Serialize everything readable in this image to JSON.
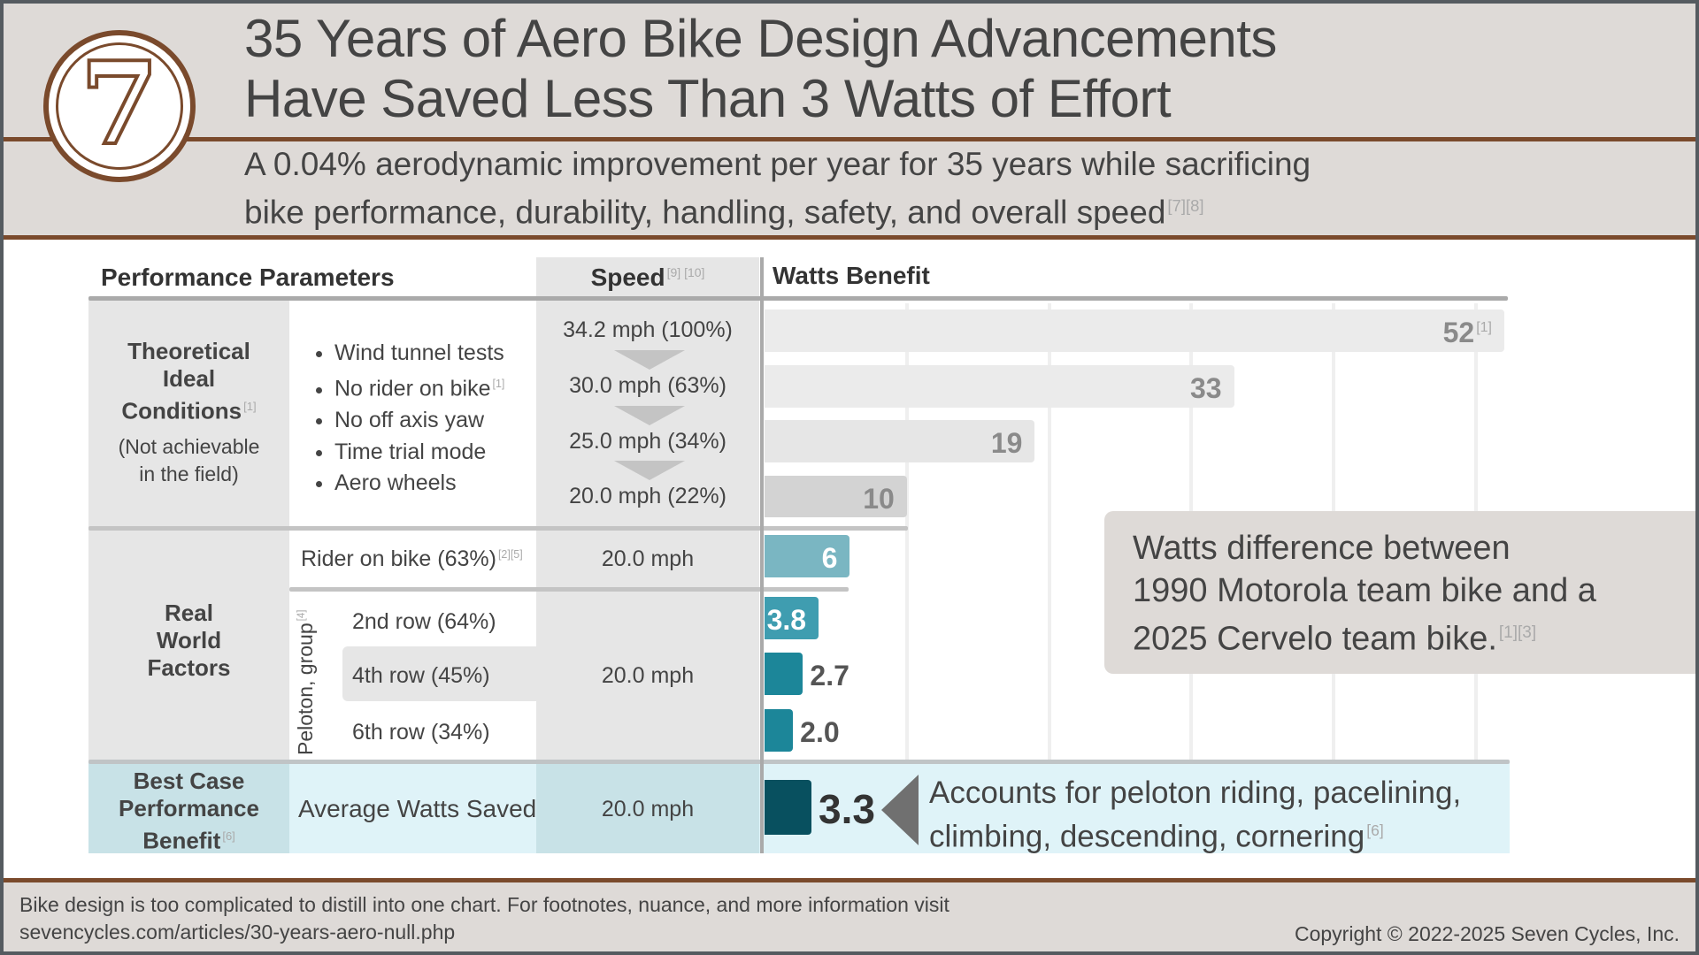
{
  "header": {
    "logo_text": "7",
    "title_line1": "35 Years of Aero Bike Design Advancements",
    "title_line2": "Have Saved Less Than 3 Watts of Effort",
    "subtitle_line1": "A 0.04% aerodynamic improvement per year for 35 years while sacrificing",
    "subtitle_line2": "bike performance, durability, handling, safety, and overall speed",
    "subtitle_refs": "[7][8]"
  },
  "table": {
    "col_params": "Performance Parameters",
    "col_speed": "Speed",
    "col_speed_refs": "[9] [10]",
    "col_watts": "Watts Benefit",
    "theoretical": {
      "label_lines": [
        "Theoretical",
        "Ideal",
        "Conditions"
      ],
      "label_ref": "[1]",
      "note_lines": [
        "(Not achievable",
        "in the field)"
      ],
      "bullets": [
        "Wind tunnel tests",
        "No rider on bike",
        "No off axis yaw",
        "Time trial mode",
        "Aero wheels"
      ],
      "bullet_ref": "[1]",
      "speeds": [
        "34.2 mph (100%)",
        "30.0 mph (63%)",
        "25.0 mph (34%)",
        "20.0 mph (22%)"
      ]
    },
    "real_world": {
      "label_lines": [
        "Real",
        "World",
        "Factors"
      ],
      "rider": "Rider on bike (63%)",
      "rider_refs": "[2][5]",
      "rider_speed": "20.0 mph",
      "peloton_label": "Peloton, group",
      "peloton_ref": "[4]",
      "rows": [
        "2nd row (64%)",
        "4th row (45%)",
        "6th row (34%)"
      ],
      "peloton_speed": "20.0 mph"
    },
    "best_case": {
      "label_lines": [
        "Best Case",
        "Performance",
        "Benefit"
      ],
      "label_ref": "[6]",
      "param": "Average Watts Saved",
      "speed": "20.0 mph"
    }
  },
  "callout": {
    "lines": [
      "Watts difference between",
      "1990 Motorola team bike and a",
      "2025 Cervelo team bike."
    ],
    "refs": "[1][3]"
  },
  "note": {
    "lines": [
      "Accounts for peloton riding, pacelining,",
      "climbing, descending, cornering"
    ],
    "ref": "[6]"
  },
  "footer": {
    "line1": "Bike design is too complicated to distill into one chart.  For footnotes, nuance, and more information visit",
    "line2": "sevencycles.com/articles/30-years-aero-null.php",
    "copyright": "Copyright © 2022-2025 Seven Cycles, Inc."
  },
  "chart_data": {
    "type": "bar",
    "orientation": "horizontal",
    "title": "Watts Benefit",
    "xlim": [
      0,
      52
    ],
    "grid": true,
    "gridlines": [
      10,
      20,
      30,
      40,
      50
    ],
    "categories": [
      "34.2 mph (100%)",
      "30.0 mph (63%)",
      "25.0 mph (34%)",
      "20.0 mph (22%)",
      "Rider on bike (63%)",
      "2nd row (64%)",
      "4th row (45%)",
      "6th row (34%)",
      "Average Watts Saved"
    ],
    "values": [
      52,
      33,
      19,
      10,
      6,
      3.8,
      2.7,
      2.0,
      3.3
    ],
    "labels": [
      "52",
      "33",
      "19",
      "10",
      "6",
      "3.8",
      "2.7",
      "2.0",
      "3.3"
    ],
    "label_refs": [
      "[1]",
      "",
      "",
      "",
      "",
      "",
      "",
      "",
      ""
    ],
    "colors": [
      "#ebebeb",
      "#ebebeb",
      "#e6e6e6",
      "#d3d3d3",
      "#7ab6c2",
      "#3f9db0",
      "#1c8699",
      "#1c8699",
      "#08505f"
    ],
    "label_colors": [
      "#8a8a8a",
      "#8a8a8a",
      "#8a8a8a",
      "#8a8a8a",
      "#ffffff",
      "#ffffff",
      "#555555",
      "#555555",
      "#333333"
    ]
  }
}
